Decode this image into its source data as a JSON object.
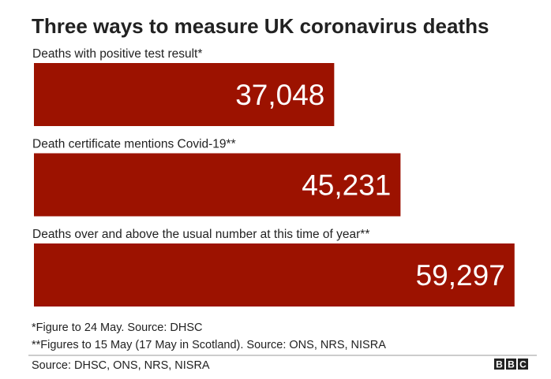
{
  "chart_data": {
    "type": "hbar",
    "title": "Three ways to measure UK coronavirus deaths",
    "categories": [
      "Deaths with positive test result*",
      "Death certificate mentions Covid-19**",
      "Deaths over and above the usual number at this time of year**"
    ],
    "values": [
      37048,
      45231,
      59297
    ],
    "value_labels": [
      "37,048",
      "45,231",
      "59,297"
    ],
    "color": "#9c1200",
    "xlim": [
      0,
      60000
    ],
    "notes": [
      "*Figure to 24 May. Source: DHSC",
      "**Figures to 15 May (17 May in Scotland). Source: ONS, NRS, NISRA"
    ],
    "source": "Source: DHSC, ONS, NRS, NISRA",
    "logo": [
      "B",
      "B",
      "C"
    ]
  }
}
